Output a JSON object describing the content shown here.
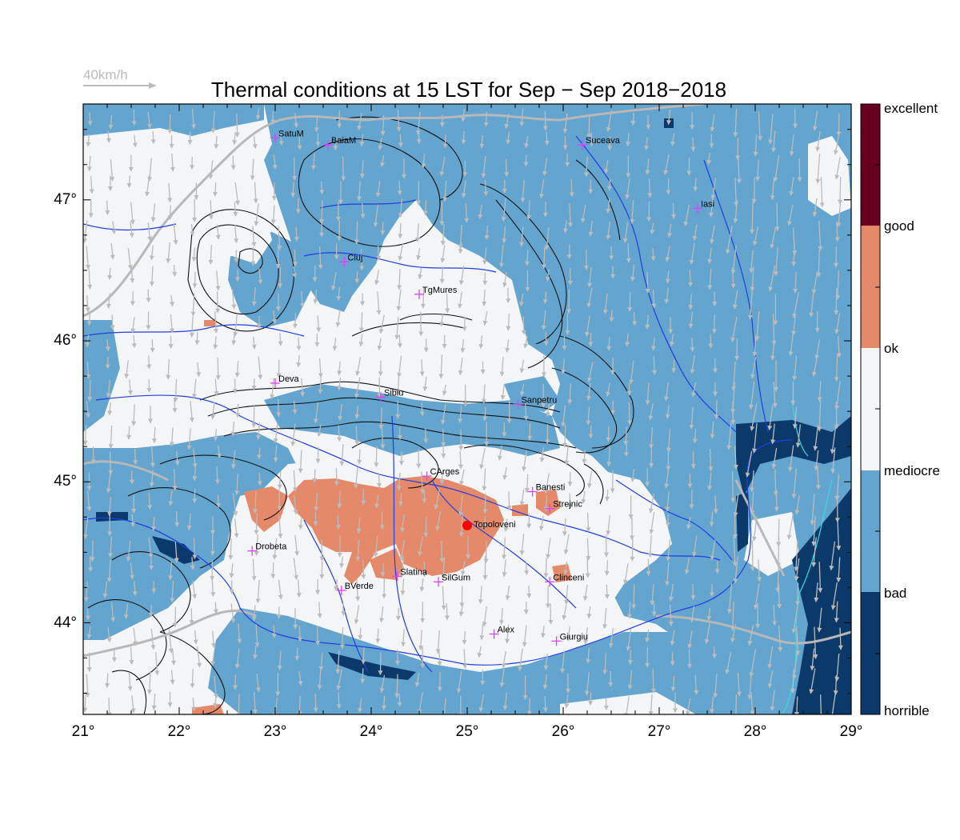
{
  "title": "Thermal conditions at 15 LST for Sep − Sep  2018−2018",
  "wind_reference": {
    "label": "40km/h",
    "color": "#bbbbbb"
  },
  "axes": {
    "x_ticks": [
      "21°",
      "22°",
      "23°",
      "24°",
      "25°",
      "26°",
      "27°",
      "28°",
      "29°"
    ],
    "y_ticks": [
      "47°",
      "46°",
      "45°",
      "44°"
    ],
    "lon_range": [
      21,
      29
    ],
    "lat_range": [
      43.35,
      47.68
    ]
  },
  "legend": {
    "classes": [
      {
        "label": "excellent",
        "color": "#67001f"
      },
      {
        "label": "good",
        "color": "#e48a6a"
      },
      {
        "label": "ok",
        "color": "#f4f5f7"
      },
      {
        "label": "mediocre",
        "color": "#63a5cf"
      },
      {
        "label": "bad",
        "color": "#0b3a6a"
      },
      {
        "label": "horrible",
        "color": ""
      }
    ]
  },
  "colors": {
    "good": "#e48a6a",
    "ok": "#f4f5f7",
    "mediocre": "#63a5cf",
    "bad": "#0b3a6a",
    "excellent": "#67001f",
    "rivers": "#1f3fe0",
    "borders": "#b8b8b8",
    "contours": "#111111",
    "coast": "#33dddd",
    "city_marker": "#e040fb",
    "highlight_point": "#ff0000"
  },
  "cities": [
    {
      "name": "SatuM",
      "lon": 23.0,
      "lat": 47.44
    },
    {
      "name": "BaiaM",
      "lon": 23.55,
      "lat": 47.39
    },
    {
      "name": "Suceava",
      "lon": 26.2,
      "lat": 47.39
    },
    {
      "name": "Iasi",
      "lon": 27.4,
      "lat": 46.94
    },
    {
      "name": "Cluj",
      "lon": 23.72,
      "lat": 46.56
    },
    {
      "name": "TgMures",
      "lon": 24.5,
      "lat": 46.33
    },
    {
      "name": "Deva",
      "lon": 23.0,
      "lat": 45.7
    },
    {
      "name": "Sibiu",
      "lon": 24.1,
      "lat": 45.6
    },
    {
      "name": "Sanpetru",
      "lon": 25.53,
      "lat": 45.55
    },
    {
      "name": "CArges",
      "lon": 24.58,
      "lat": 45.04
    },
    {
      "name": "Banesti",
      "lon": 25.68,
      "lat": 44.93
    },
    {
      "name": "Strejnic",
      "lon": 25.86,
      "lat": 44.81
    },
    {
      "name": "Drobeta",
      "lon": 22.76,
      "lat": 44.51
    },
    {
      "name": "Slatina",
      "lon": 24.27,
      "lat": 44.33
    },
    {
      "name": "SilGum",
      "lon": 24.7,
      "lat": 44.29
    },
    {
      "name": "Clinceni",
      "lon": 25.86,
      "lat": 44.29
    },
    {
      "name": "BVerde",
      "lon": 23.69,
      "lat": 44.23
    },
    {
      "name": "Alex",
      "lon": 25.28,
      "lat": 43.92
    },
    {
      "name": "Giurgiu",
      "lon": 25.93,
      "lat": 43.87
    }
  ],
  "highlight_point": {
    "name": "Topoloveni",
    "lon": 25.0,
    "lat": 44.69
  }
}
